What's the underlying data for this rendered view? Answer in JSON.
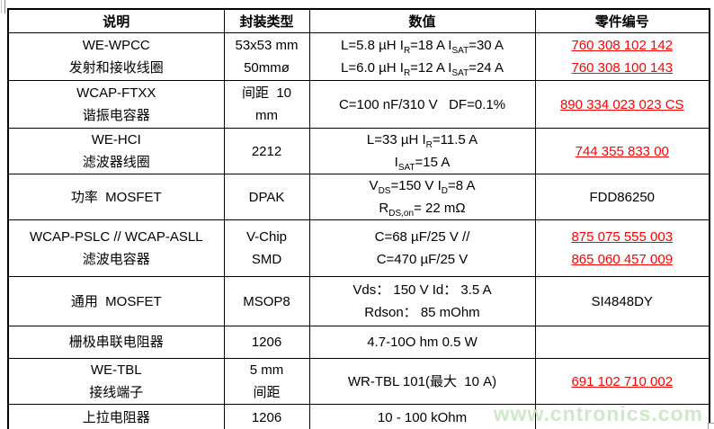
{
  "header": {
    "columns": [
      "说明",
      "封装类型",
      "数值",
      "零件编号"
    ]
  },
  "rows": [
    {
      "description": [
        "WE-WPCC",
        "发射和接收线圈"
      ],
      "package": [
        "53x53 mm",
        "50mmø"
      ],
      "values": [
        [
          {
            "t": "L=5.8 µH I"
          },
          {
            "t": "R",
            "sub": true
          },
          {
            "t": "=18 A I"
          },
          {
            "t": "SAT",
            "sub": true
          },
          {
            "t": "=30 A"
          }
        ],
        [
          {
            "t": "L=6.0 µH I"
          },
          {
            "t": "R",
            "sub": true
          },
          {
            "t": "=12 A I"
          },
          {
            "t": "SAT",
            "sub": true
          },
          {
            "t": "=24 A"
          }
        ]
      ],
      "part_numbers": [
        {
          "text": "760 308 102 142",
          "link": true
        },
        {
          "text": "760 308 100 143",
          "link": true
        }
      ]
    },
    {
      "description": [
        "WCAP-FTXX",
        "谐振电容器"
      ],
      "package": [
        "间距  10",
        "mm"
      ],
      "values": [
        [
          {
            "t": "C=100 nF/310 V   DF=0.1%"
          }
        ]
      ],
      "part_numbers": [
        {
          "text": "890 334 023 023 CS",
          "link": true
        }
      ]
    },
    {
      "description": [
        "WE-HCI",
        "滤波器线圈"
      ],
      "package": [
        "2212"
      ],
      "values": [
        [
          {
            "t": "L=33 µH I"
          },
          {
            "t": "R",
            "sub": true
          },
          {
            "t": "=11.5 A"
          }
        ],
        [
          {
            "t": "I"
          },
          {
            "t": "SAT",
            "sub": true
          },
          {
            "t": "=15 A"
          }
        ]
      ],
      "part_numbers": [
        {
          "text": "744 355 833 00",
          "link": true
        }
      ]
    },
    {
      "description": [
        "功率  MOSFET"
      ],
      "package": [
        "DPAK"
      ],
      "values": [
        [
          {
            "t": "V"
          },
          {
            "t": "DS",
            "sub": true
          },
          {
            "t": "=150 V I"
          },
          {
            "t": "D",
            "sub": true
          },
          {
            "t": "=8 A"
          }
        ],
        [
          {
            "t": "R"
          },
          {
            "t": "DS,on",
            "sub": true
          },
          {
            "t": "= 22 mΩ"
          }
        ]
      ],
      "part_numbers": [
        {
          "text": "FDD86250",
          "link": false
        }
      ]
    },
    {
      "description": [
        "WCAP-PSLC // WCAP-ASLL",
        "滤波电容器"
      ],
      "package": [
        "V-Chip",
        "SMD"
      ],
      "values": [
        [
          {
            "t": "C=68 µF/25 V //"
          }
        ],
        [
          {
            "t": "C=470 µF/25 V"
          }
        ]
      ],
      "part_numbers": [
        {
          "text": "875 075 555 003",
          "link": true
        },
        {
          "text": "865 060 457 009",
          "link": true
        }
      ]
    },
    {
      "description": [
        "通用  MOSFET"
      ],
      "package": [
        "MSOP8"
      ],
      "values": [
        [
          {
            "t": "Vds： 150 V Id： 3.5 A"
          }
        ],
        [
          {
            "t": "Rdson： 85 mOhm"
          }
        ]
      ],
      "part_numbers": [
        {
          "text": "SI4848DY",
          "link": false
        }
      ]
    },
    {
      "description": [
        "栅极串联电阻器"
      ],
      "package": [
        "1206"
      ],
      "values": [
        [
          {
            "t": "4.7-10O hm 0.5 W"
          }
        ]
      ],
      "part_numbers": []
    },
    {
      "description": [
        "WE-TBL",
        "接线端子"
      ],
      "package": [
        "5 mm",
        "间距"
      ],
      "values": [
        [
          {
            "t": "WR-TBL 101(最大  10 A)"
          }
        ]
      ],
      "part_numbers": [
        {
          "text": "691 102 710 002",
          "link": true
        }
      ]
    },
    {
      "description": [
        "上拉电阻器"
      ],
      "package": [
        "1206"
      ],
      "values": [
        [
          {
            "t": "10 - 100 kOhm"
          }
        ]
      ],
      "part_numbers": []
    }
  ],
  "watermark": {
    "text": "www.cntronics.com"
  },
  "colors": {
    "link_red": "#ff0000",
    "border_black": "#000000",
    "watermark_green": "#cde9c8",
    "background": "#ffffff"
  }
}
